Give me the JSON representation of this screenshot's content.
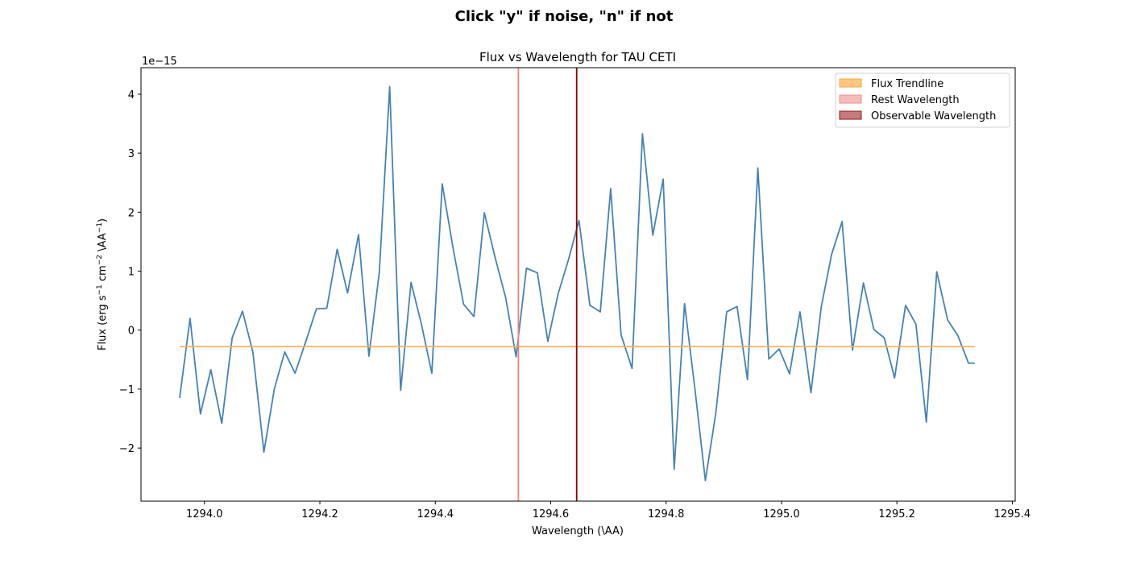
{
  "figure": {
    "suptitle": "Click \"y\" if noise, \"n\" if not"
  },
  "chart_data": {
    "type": "line",
    "title": "Flux vs Wavelength for TAU CETI",
    "xlabel": "Wavelength (\\AA)",
    "ylabel_parts": [
      "Flux (erg s",
      "−1",
      " cm",
      "−2",
      " \\AA",
      "−1",
      ")"
    ],
    "offset_text": "1e−15",
    "xlim": [
      1293.89,
      1295.405
    ],
    "ylim": [
      -2.9,
      4.45
    ],
    "xticks": [
      1294.0,
      1294.2,
      1294.4,
      1294.6,
      1294.8,
      1295.0,
      1295.2,
      1295.4
    ],
    "xtick_labels": [
      "1294.0",
      "1294.2",
      "1294.4",
      "1294.6",
      "1294.8",
      "1295.0",
      "1295.2",
      "1295.4"
    ],
    "yticks": [
      -2,
      -1,
      0,
      1,
      2,
      3,
      4
    ],
    "ytick_labels": [
      "−2",
      "−1",
      "0",
      "1",
      "2",
      "3",
      "4"
    ],
    "legend_position": "top-right",
    "series": [
      {
        "name": "Flux",
        "color": "#4682b4",
        "x": [
          1293.957,
          1293.975,
          1293.993,
          1294.011,
          1294.03,
          1294.048,
          1294.066,
          1294.084,
          1294.103,
          1294.121,
          1294.139,
          1294.157,
          1294.175,
          1294.194,
          1294.212,
          1294.23,
          1294.248,
          1294.267,
          1294.285,
          1294.303,
          1294.321,
          1294.34,
          1294.358,
          1294.376,
          1294.394,
          1294.412,
          1294.431,
          1294.449,
          1294.467,
          1294.485,
          1294.504,
          1294.522,
          1294.54,
          1294.558,
          1294.577,
          1294.595,
          1294.613,
          1294.631,
          1294.649,
          1294.668,
          1294.686,
          1294.704,
          1294.722,
          1294.741,
          1294.759,
          1294.777,
          1294.795,
          1294.814,
          1294.832,
          1294.85,
          1294.868,
          1294.886,
          1294.905,
          1294.923,
          1294.941,
          1294.959,
          1294.978,
          1294.996,
          1295.014,
          1295.032,
          1295.051,
          1295.069,
          1295.087,
          1295.105,
          1295.123,
          1295.142,
          1295.16,
          1295.178,
          1295.196,
          1295.215,
          1295.233,
          1295.251,
          1295.269,
          1295.288,
          1295.306,
          1295.324,
          1295.335
        ],
        "values": [
          -1.15,
          0.2,
          -1.42,
          -0.67,
          -1.58,
          -0.13,
          0.32,
          -0.38,
          -2.07,
          -1.0,
          -0.37,
          -0.73,
          -0.21,
          0.36,
          0.37,
          1.37,
          0.63,
          1.62,
          -0.44,
          0.98,
          4.13,
          -1.02,
          0.81,
          0.1,
          -0.73,
          2.48,
          1.38,
          0.44,
          0.23,
          1.99,
          1.22,
          0.55,
          -0.45,
          1.05,
          0.97,
          -0.19,
          0.62,
          1.2,
          1.86,
          0.42,
          0.31,
          2.4,
          -0.08,
          -0.65,
          3.33,
          1.61,
          2.56,
          -2.36,
          0.45,
          -1.0,
          -2.55,
          -1.42,
          0.31,
          0.4,
          -0.84,
          2.75,
          -0.49,
          -0.32,
          -0.74,
          0.31,
          -1.06,
          0.4,
          1.29,
          1.84,
          -0.34,
          0.8,
          0.01,
          -0.13,
          -0.81,
          0.42,
          0.1,
          -1.56,
          0.99,
          0.17,
          -0.1,
          -0.56,
          -0.56
        ]
      },
      {
        "name": "Flux Trendline",
        "color": "#f0b453",
        "x": [
          1293.957,
          1295.335
        ],
        "values": [
          -0.28,
          -0.28
        ]
      }
    ],
    "vlines": [
      {
        "name": "Rest Wavelength",
        "x": 1294.544,
        "color": "#f08080"
      },
      {
        "name": "Observable Wavelength",
        "x": 1294.645,
        "color": "#8b0000"
      }
    ],
    "legend": [
      {
        "label": "Flux Trendline",
        "color": "#ffc680",
        "edge": "#f5a94c"
      },
      {
        "label": "Rest Wavelength",
        "color": "#f5bcbc",
        "edge": "#ef8f8f"
      },
      {
        "label": "Observable Wavelength",
        "color": "#c47b7b",
        "edge": "#8b1a1a"
      }
    ]
  }
}
